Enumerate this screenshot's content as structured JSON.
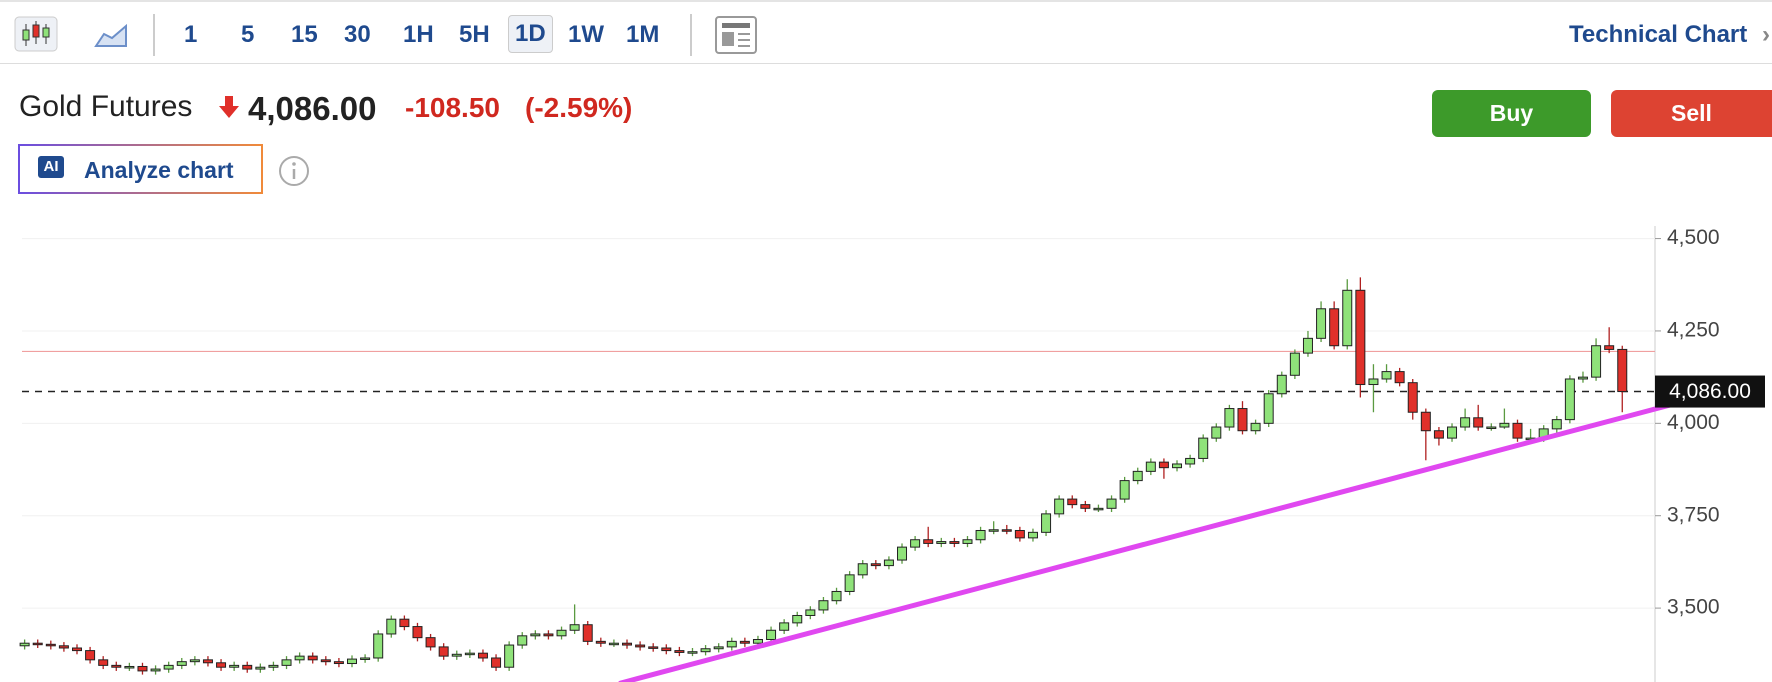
{
  "toolbar": {
    "intervals": [
      "1",
      "5",
      "15",
      "30",
      "1H",
      "5H",
      "1D",
      "1W",
      "1M"
    ],
    "selected": "1D",
    "link": "Technical Chart"
  },
  "header": {
    "name": "Gold Futures",
    "change": "-108.50",
    "change_pct": "(-2.59%)",
    "analyze": "Analyze chart",
    "ai_badge": "AI",
    "buy": "Buy",
    "sell": "Sell"
  },
  "chart_data": {
    "type": "candlestick",
    "open": [
      3398,
      3405,
      3402,
      3398,
      3392,
      3385,
      3360,
      3345,
      3340,
      3342,
      3330,
      3335,
      3345,
      3355,
      3360,
      3352,
      3340,
      3345,
      3335,
      3340,
      3345,
      3360,
      3370,
      3360,
      3355,
      3350,
      3362,
      3365,
      3430,
      3470,
      3450,
      3420,
      3395,
      3370,
      3375,
      3378,
      3365,
      3340,
      3400,
      3425,
      3430,
      3425,
      3440,
      3455,
      3410,
      3405,
      3405,
      3400,
      3395,
      3392,
      3385,
      3380,
      3382,
      3390,
      3395,
      3410,
      3405,
      3415,
      3440,
      3460,
      3480,
      3495,
      3520,
      3545,
      3590,
      3620,
      3615,
      3630,
      3665,
      3685,
      3675,
      3680,
      3675,
      3685,
      3710,
      3712,
      3710,
      3690,
      3705,
      3755,
      3795,
      3780,
      3770,
      3770,
      3795,
      3845,
      3870,
      3895,
      3880,
      3890,
      3905,
      3960,
      3990,
      4040,
      3980,
      4000,
      4080,
      4130,
      4190,
      4230,
      4310,
      4210,
      4360,
      4105,
      4120,
      4140,
      4110,
      4030,
      3980,
      3960,
      3990,
      4015,
      3990,
      3990,
      4000,
      3960,
      3960,
      3985,
      4010,
      4120,
      4125,
      4210,
      4200
    ],
    "high": [
      3415,
      3415,
      3412,
      3408,
      3402,
      3395,
      3370,
      3355,
      3352,
      3352,
      3345,
      3355,
      3365,
      3370,
      3370,
      3362,
      3355,
      3355,
      3350,
      3355,
      3370,
      3380,
      3380,
      3370,
      3365,
      3372,
      3375,
      3440,
      3480,
      3480,
      3460,
      3430,
      3405,
      3385,
      3388,
      3388,
      3375,
      3410,
      3435,
      3440,
      3440,
      3450,
      3510,
      3465,
      3420,
      3415,
      3415,
      3410,
      3405,
      3402,
      3395,
      3392,
      3400,
      3405,
      3420,
      3420,
      3425,
      3450,
      3470,
      3490,
      3505,
      3530,
      3555,
      3600,
      3630,
      3630,
      3640,
      3675,
      3695,
      3720,
      3690,
      3690,
      3695,
      3720,
      3735,
      3725,
      3720,
      3715,
      3765,
      3805,
      3805,
      3790,
      3780,
      3805,
      3855,
      3880,
      3905,
      3905,
      3900,
      3915,
      3970,
      4000,
      4050,
      4060,
      4010,
      4090,
      4140,
      4200,
      4250,
      4330,
      4330,
      4390,
      4395,
      4160,
      4160,
      4150,
      4120,
      4040,
      3990,
      4000,
      4040,
      4050,
      4000,
      4040,
      4010,
      3985,
      3995,
      4020,
      4130,
      4140,
      4230,
      4260,
      4210
    ],
    "low": [
      3388,
      3392,
      3388,
      3382,
      3375,
      3350,
      3335,
      3330,
      3330,
      3320,
      3320,
      3325,
      3335,
      3345,
      3342,
      3330,
      3330,
      3325,
      3325,
      3330,
      3335,
      3350,
      3350,
      3345,
      3340,
      3340,
      3352,
      3355,
      3420,
      3440,
      3410,
      3385,
      3360,
      3360,
      3365,
      3355,
      3330,
      3330,
      3390,
      3415,
      3415,
      3415,
      3430,
      3400,
      3395,
      3395,
      3390,
      3385,
      3382,
      3375,
      3370,
      3370,
      3372,
      3380,
      3385,
      3395,
      3395,
      3405,
      3430,
      3450,
      3470,
      3485,
      3510,
      3535,
      3580,
      3605,
      3605,
      3620,
      3655,
      3665,
      3665,
      3665,
      3665,
      3675,
      3700,
      3700,
      3680,
      3680,
      3695,
      3745,
      3770,
      3760,
      3760,
      3760,
      3785,
      3835,
      3860,
      3850,
      3870,
      3880,
      3895,
      3950,
      3980,
      3970,
      3970,
      3990,
      4070,
      4120,
      4180,
      4220,
      4200,
      4200,
      4070,
      4030,
      4110,
      4100,
      4010,
      3900,
      3940,
      3950,
      3980,
      3980,
      3980,
      3985,
      3950,
      3950,
      3950,
      3975,
      4000,
      4110,
      4115,
      4190,
      4030
    ],
    "close": [
      3405,
      3402,
      3398,
      3392,
      3385,
      3360,
      3345,
      3340,
      3342,
      3330,
      3335,
      3345,
      3355,
      3360,
      3352,
      3340,
      3345,
      3335,
      3340,
      3345,
      3360,
      3370,
      3360,
      3355,
      3350,
      3362,
      3365,
      3430,
      3470,
      3450,
      3420,
      3395,
      3370,
      3375,
      3378,
      3365,
      3340,
      3400,
      3425,
      3430,
      3425,
      3440,
      3455,
      3410,
      3405,
      3405,
      3400,
      3395,
      3392,
      3385,
      3380,
      3382,
      3390,
      3395,
      3410,
      3405,
      3415,
      3440,
      3460,
      3480,
      3495,
      3520,
      3545,
      3590,
      3620,
      3615,
      3630,
      3665,
      3685,
      3675,
      3680,
      3675,
      3685,
      3710,
      3712,
      3710,
      3690,
      3705,
      3755,
      3795,
      3780,
      3770,
      3770,
      3795,
      3845,
      3870,
      3895,
      3880,
      3890,
      3905,
      3960,
      3990,
      4040,
      3980,
      4000,
      4080,
      4130,
      4190,
      4230,
      4310,
      4210,
      4360,
      4105,
      4120,
      4140,
      4110,
      4030,
      3980,
      3960,
      3990,
      4015,
      3990,
      3990,
      4000,
      3960,
      3960,
      3985,
      4010,
      4120,
      4125,
      4210,
      4200,
      4086
    ],
    "up_color": "#8fe27a",
    "down_color": "#e0302a",
    "last": 4086,
    "last_label": "4,086.00",
    "prev_close": 4194.5,
    "trendline": {
      "color": "#e048f0",
      "start": [
        45.5,
        3297
      ],
      "end": [
        129,
        4081
      ]
    },
    "xlim": [
      -0.2,
      124.5
    ],
    "ylim": [
      3300,
      4534
    ],
    "yticks": [
      {
        "value": 3500,
        "label": "3,500"
      },
      {
        "value": 3750,
        "label": "3,750"
      },
      {
        "value": 4000,
        "label": "4,000"
      },
      {
        "value": 4250,
        "label": "4,250"
      },
      {
        "value": 4500,
        "label": "4,500"
      }
    ],
    "grid": true
  }
}
